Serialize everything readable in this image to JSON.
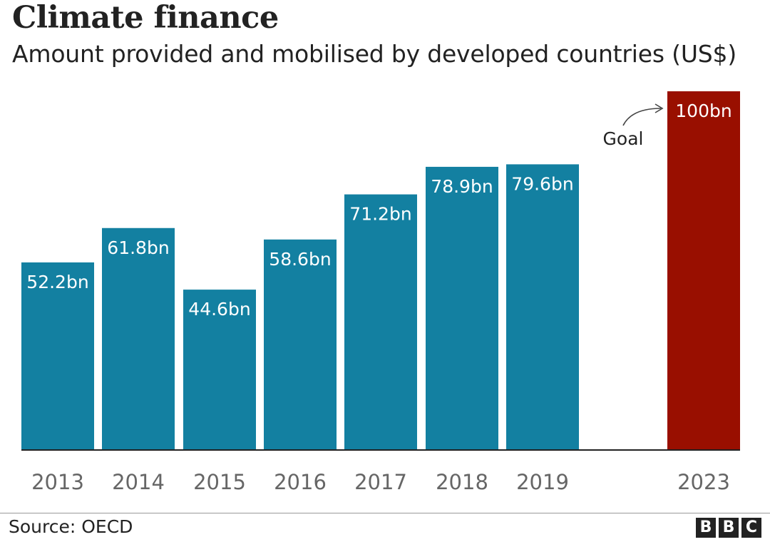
{
  "chart_data": {
    "type": "bar",
    "title": "Climate finance",
    "subtitle": "Amount provided and mobilised by developed countries (US$)",
    "categories": [
      "2013",
      "2014",
      "2015",
      "2016",
      "2017",
      "2018",
      "2019",
      "2023"
    ],
    "values": [
      52.2,
      61.8,
      44.6,
      58.6,
      71.2,
      78.9,
      79.6,
      100
    ],
    "labels": [
      "52.2bn",
      "61.8bn",
      "44.6bn",
      "58.6bn",
      "71.2bn",
      "78.9bn",
      "79.6bn",
      "100bn"
    ],
    "goal_index": 7,
    "annotation": "Goal",
    "ylim": [
      0,
      100
    ],
    "grid": false,
    "xlabel": "",
    "ylabel": ""
  },
  "colors": {
    "bar": "#1380A1",
    "goal_bar": "#990F00",
    "tick_text": "#666666",
    "label_text": "#ffffff",
    "axis": "#222222"
  },
  "footer": {
    "source": "Source: OECD",
    "logo_letters": [
      "B",
      "B",
      "C"
    ]
  }
}
